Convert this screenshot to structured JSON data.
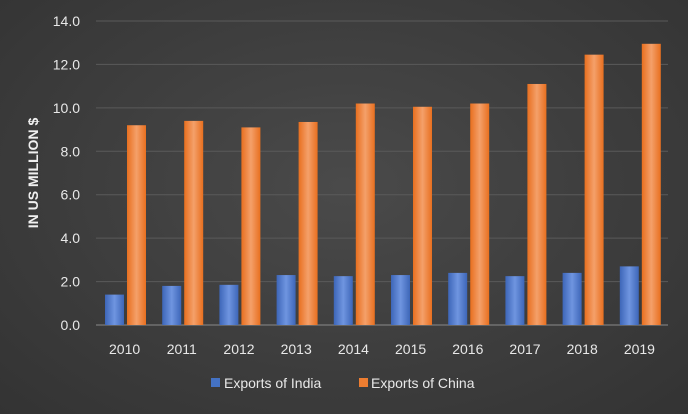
{
  "chart_data": {
    "type": "bar",
    "title": "",
    "xlabel": "",
    "ylabel": "IN US MILLION $",
    "ylim": [
      0,
      14
    ],
    "yticks": [
      "0.0",
      "2.0",
      "4.0",
      "6.0",
      "8.0",
      "10.0",
      "12.0",
      "14.0"
    ],
    "grid": true,
    "legend_position": "bottom",
    "categories": [
      "2010",
      "2011",
      "2012",
      "2013",
      "2014",
      "2015",
      "2016",
      "2017",
      "2018",
      "2019"
    ],
    "series": [
      {
        "name": "Exports of India",
        "color": "#4472c4",
        "values": [
          1.4,
          1.8,
          1.85,
          2.3,
          2.25,
          2.3,
          2.4,
          2.25,
          2.4,
          2.7
        ]
      },
      {
        "name": "Exports of China",
        "color": "#ed7d31",
        "values": [
          9.2,
          9.4,
          9.1,
          9.35,
          10.2,
          10.05,
          10.2,
          11.1,
          12.45,
          12.95
        ]
      }
    ]
  }
}
